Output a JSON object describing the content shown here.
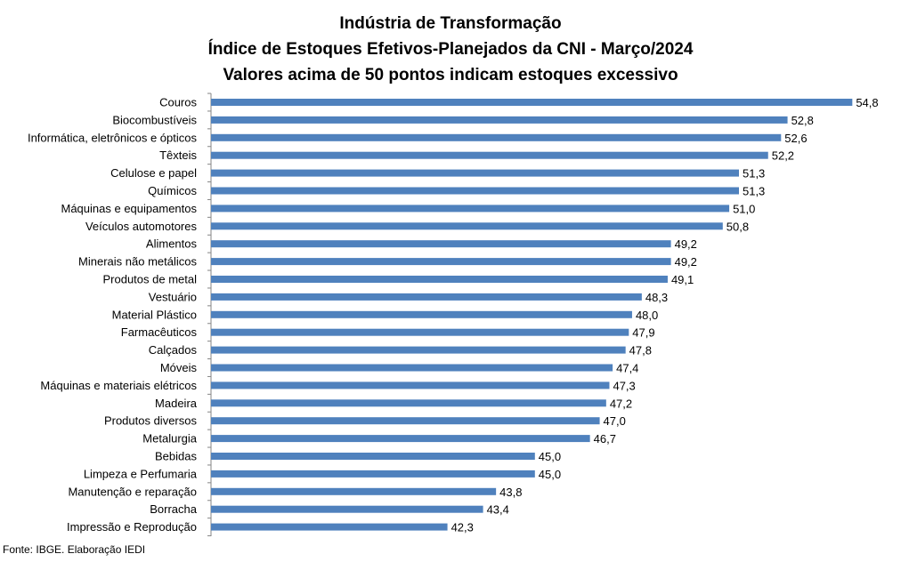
{
  "chart_data": {
    "type": "bar",
    "orientation": "horizontal",
    "title": [
      "Indústria de Transformação",
      "Índice de Estoques Efetivos-Planejados da CNI - Março/2024",
      "Valores acima de 50 pontos indicam estoques excessivo"
    ],
    "categories": [
      "Couros",
      "Biocombustíveis",
      "Informática, eletrônicos e ópticos",
      "Têxteis",
      "Celulose e papel",
      "Químicos",
      "Máquinas e equipamentos",
      "Veículos automotores",
      "Alimentos",
      "Minerais não metálicos",
      "Produtos de metal",
      "Vestuário",
      "Material Plástico",
      "Farmacêuticos",
      "Calçados",
      "Móveis",
      "Máquinas e materiais elétricos",
      "Madeira",
      "Produtos diversos",
      "Metalurgia",
      "Bebidas",
      "Limpeza e Perfumaria",
      "Manutenção e reparação",
      "Borracha",
      "Impressão e Reprodução"
    ],
    "values": [
      54.8,
      52.8,
      52.6,
      52.2,
      51.3,
      51.3,
      51.0,
      50.8,
      49.2,
      49.2,
      49.1,
      48.3,
      48.0,
      47.9,
      47.8,
      47.4,
      47.3,
      47.2,
      47.0,
      46.7,
      45.0,
      45.0,
      43.8,
      43.4,
      42.3
    ],
    "data_labels": [
      "54,8",
      "52,8",
      "52,6",
      "52,2",
      "51,3",
      "51,3",
      "51,0",
      "50,8",
      "49,2",
      "49,2",
      "49,1",
      "48,3",
      "48,0",
      "47,9",
      "47,8",
      "47,4",
      "47,3",
      "47,2",
      "47,0",
      "46,7",
      "45,0",
      "45,0",
      "43,8",
      "43,4",
      "42,3"
    ],
    "xlim": [
      35,
      56
    ],
    "grid": false,
    "legend": "none",
    "bar_color": "#4f81bd"
  },
  "source_note": "Fonte: IBGE. Elaboração IEDI"
}
